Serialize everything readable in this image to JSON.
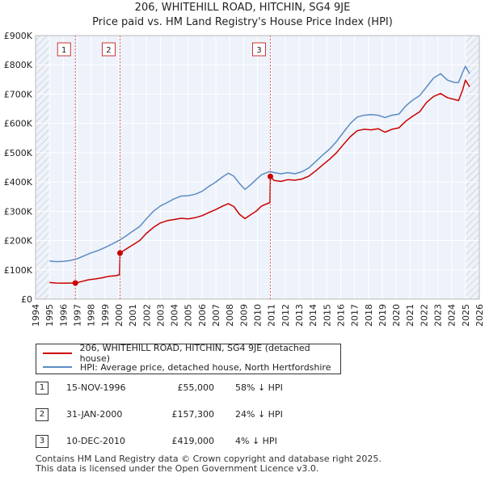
{
  "title": "206, WHITEHILL ROAD, HITCHIN, SG4 9JE",
  "subtitle": "Price paid vs. HM Land Registry's House Price Index (HPI)",
  "chart_data": {
    "type": "line",
    "title": "206, WHITEHILL ROAD, HITCHIN, SG4 9JE",
    "subtitle": "Price paid vs. HM Land Registry's House Price Index (HPI)",
    "xlabel": "",
    "ylabel": "",
    "xlim": [
      1994,
      2026
    ],
    "ylim": [
      0,
      900000
    ],
    "x_ticks": [
      "1994",
      "1995",
      "1996",
      "1997",
      "1998",
      "1999",
      "2000",
      "2001",
      "2002",
      "2003",
      "2004",
      "2005",
      "2006",
      "2007",
      "2008",
      "2009",
      "2010",
      "2011",
      "2012",
      "2013",
      "2014",
      "2015",
      "2016",
      "2017",
      "2018",
      "2019",
      "2020",
      "2021",
      "2022",
      "2023",
      "2024",
      "2025",
      "2026"
    ],
    "y_ticks": [
      {
        "value": 0,
        "label": "£0"
      },
      {
        "value": 100000,
        "label": "£100K"
      },
      {
        "value": 200000,
        "label": "£200K"
      },
      {
        "value": 300000,
        "label": "£300K"
      },
      {
        "value": 400000,
        "label": "£400K"
      },
      {
        "value": 500000,
        "label": "£500K"
      },
      {
        "value": 600000,
        "label": "£600K"
      },
      {
        "value": 700000,
        "label": "£700K"
      },
      {
        "value": 800000,
        "label": "£800K"
      },
      {
        "value": 900000,
        "label": "£900K"
      }
    ],
    "grid": true,
    "series": [
      {
        "name": "206, WHITEHILL ROAD, HITCHIN, SG4 9JE (detached house)",
        "color": "#cc0000",
        "points": [
          [
            1995,
            57000
          ],
          [
            1995.5,
            55000
          ],
          [
            1996,
            54500
          ],
          [
            1996.5,
            55000
          ],
          [
            1996.87,
            55000
          ],
          [
            1997.3,
            60000
          ],
          [
            1997.8,
            66000
          ],
          [
            1998.3,
            69000
          ],
          [
            1998.8,
            73000
          ],
          [
            1999.3,
            78000
          ],
          [
            1999.8,
            80000
          ],
          [
            2000.05,
            84000
          ],
          [
            2000.09,
            157300
          ],
          [
            2000.5,
            170000
          ],
          [
            2001,
            185000
          ],
          [
            2001.5,
            200000
          ],
          [
            2002,
            225000
          ],
          [
            2002.5,
            245000
          ],
          [
            2003,
            260000
          ],
          [
            2003.5,
            268000
          ],
          [
            2004,
            272000
          ],
          [
            2004.5,
            276000
          ],
          [
            2005,
            274000
          ],
          [
            2005.5,
            278000
          ],
          [
            2006,
            285000
          ],
          [
            2006.5,
            296000
          ],
          [
            2007,
            306000
          ],
          [
            2007.5,
            318000
          ],
          [
            2007.9,
            326000
          ],
          [
            2008.3,
            316000
          ],
          [
            2008.7,
            290000
          ],
          [
            2009.1,
            275000
          ],
          [
            2009.5,
            288000
          ],
          [
            2009.9,
            300000
          ],
          [
            2010.3,
            318000
          ],
          [
            2010.9,
            330000
          ],
          [
            2010.93,
            419000
          ],
          [
            2011.2,
            405000
          ],
          [
            2011.7,
            402000
          ],
          [
            2012.2,
            408000
          ],
          [
            2012.7,
            406000
          ],
          [
            2013.2,
            410000
          ],
          [
            2013.7,
            420000
          ],
          [
            2014.2,
            438000
          ],
          [
            2014.7,
            458000
          ],
          [
            2015.2,
            478000
          ],
          [
            2015.7,
            500000
          ],
          [
            2016.2,
            528000
          ],
          [
            2016.7,
            555000
          ],
          [
            2017.2,
            575000
          ],
          [
            2017.7,
            580000
          ],
          [
            2018.2,
            578000
          ],
          [
            2018.7,
            582000
          ],
          [
            2019.2,
            570000
          ],
          [
            2019.7,
            580000
          ],
          [
            2020.2,
            585000
          ],
          [
            2020.7,
            608000
          ],
          [
            2021.2,
            625000
          ],
          [
            2021.7,
            640000
          ],
          [
            2022.2,
            672000
          ],
          [
            2022.7,
            692000
          ],
          [
            2023.2,
            702000
          ],
          [
            2023.7,
            688000
          ],
          [
            2024.2,
            682000
          ],
          [
            2024.5,
            678000
          ],
          [
            2024.8,
            715000
          ],
          [
            2025.0,
            748000
          ],
          [
            2025.3,
            725000
          ]
        ]
      },
      {
        "name": "HPI: Average price, detached house, North Hertfordshire",
        "color": "#5b8cc4",
        "points": [
          [
            1995,
            130000
          ],
          [
            1995.5,
            128000
          ],
          [
            1996,
            129000
          ],
          [
            1996.5,
            132000
          ],
          [
            1997,
            138000
          ],
          [
            1997.5,
            148000
          ],
          [
            1998,
            158000
          ],
          [
            1998.5,
            166000
          ],
          [
            1999,
            176000
          ],
          [
            1999.5,
            188000
          ],
          [
            2000,
            200000
          ],
          [
            2000.5,
            215000
          ],
          [
            2001,
            232000
          ],
          [
            2001.5,
            248000
          ],
          [
            2002,
            275000
          ],
          [
            2002.5,
            300000
          ],
          [
            2003,
            318000
          ],
          [
            2003.5,
            330000
          ],
          [
            2004,
            343000
          ],
          [
            2004.5,
            352000
          ],
          [
            2005,
            353000
          ],
          [
            2005.5,
            358000
          ],
          [
            2006,
            368000
          ],
          [
            2006.5,
            385000
          ],
          [
            2007,
            400000
          ],
          [
            2007.5,
            418000
          ],
          [
            2007.9,
            430000
          ],
          [
            2008.3,
            420000
          ],
          [
            2008.7,
            395000
          ],
          [
            2009.1,
            375000
          ],
          [
            2009.5,
            390000
          ],
          [
            2009.9,
            408000
          ],
          [
            2010.3,
            425000
          ],
          [
            2010.9,
            436000
          ],
          [
            2011.2,
            432000
          ],
          [
            2011.7,
            428000
          ],
          [
            2012.2,
            432000
          ],
          [
            2012.7,
            428000
          ],
          [
            2013.2,
            435000
          ],
          [
            2013.7,
            448000
          ],
          [
            2014.2,
            470000
          ],
          [
            2014.7,
            492000
          ],
          [
            2015.2,
            512000
          ],
          [
            2015.7,
            538000
          ],
          [
            2016.2,
            570000
          ],
          [
            2016.7,
            600000
          ],
          [
            2017.2,
            622000
          ],
          [
            2017.7,
            628000
          ],
          [
            2018.2,
            630000
          ],
          [
            2018.7,
            628000
          ],
          [
            2019.2,
            620000
          ],
          [
            2019.7,
            628000
          ],
          [
            2020.2,
            632000
          ],
          [
            2020.7,
            660000
          ],
          [
            2021.2,
            680000
          ],
          [
            2021.7,
            695000
          ],
          [
            2022.2,
            725000
          ],
          [
            2022.7,
            755000
          ],
          [
            2023.2,
            770000
          ],
          [
            2023.7,
            748000
          ],
          [
            2024.2,
            740000
          ],
          [
            2024.5,
            740000
          ],
          [
            2024.8,
            775000
          ],
          [
            2025.0,
            795000
          ],
          [
            2025.3,
            770000
          ]
        ]
      }
    ],
    "sales": [
      {
        "label": "1",
        "x": 1996.87,
        "price": 55000
      },
      {
        "label": "2",
        "x": 2000.09,
        "price": 157300
      },
      {
        "label": "3",
        "x": 2010.93,
        "price": 419000
      }
    ],
    "hatched_regions": [
      [
        1994,
        1995.0
      ],
      [
        2025.0,
        2026
      ]
    ]
  },
  "legend": {
    "items": [
      {
        "label": "206, WHITEHILL ROAD, HITCHIN, SG4 9JE (detached house)",
        "color": "#cc0000"
      },
      {
        "label": "HPI: Average price, detached house, North Hertfordshire",
        "color": "#5b8cc4"
      }
    ]
  },
  "sales_table": [
    {
      "num": "1",
      "date": "15-NOV-1996",
      "price": "£55,000",
      "hpi": "58% ↓ HPI"
    },
    {
      "num": "2",
      "date": "31-JAN-2000",
      "price": "£157,300",
      "hpi": "24% ↓ HPI"
    },
    {
      "num": "3",
      "date": "10-DEC-2010",
      "price": "£419,000",
      "hpi": "4% ↓ HPI"
    }
  ],
  "footer": {
    "line1": "Contains HM Land Registry data © Crown copyright and database right 2025.",
    "line2": "This data is licensed under the Open Government Licence v3.0."
  }
}
